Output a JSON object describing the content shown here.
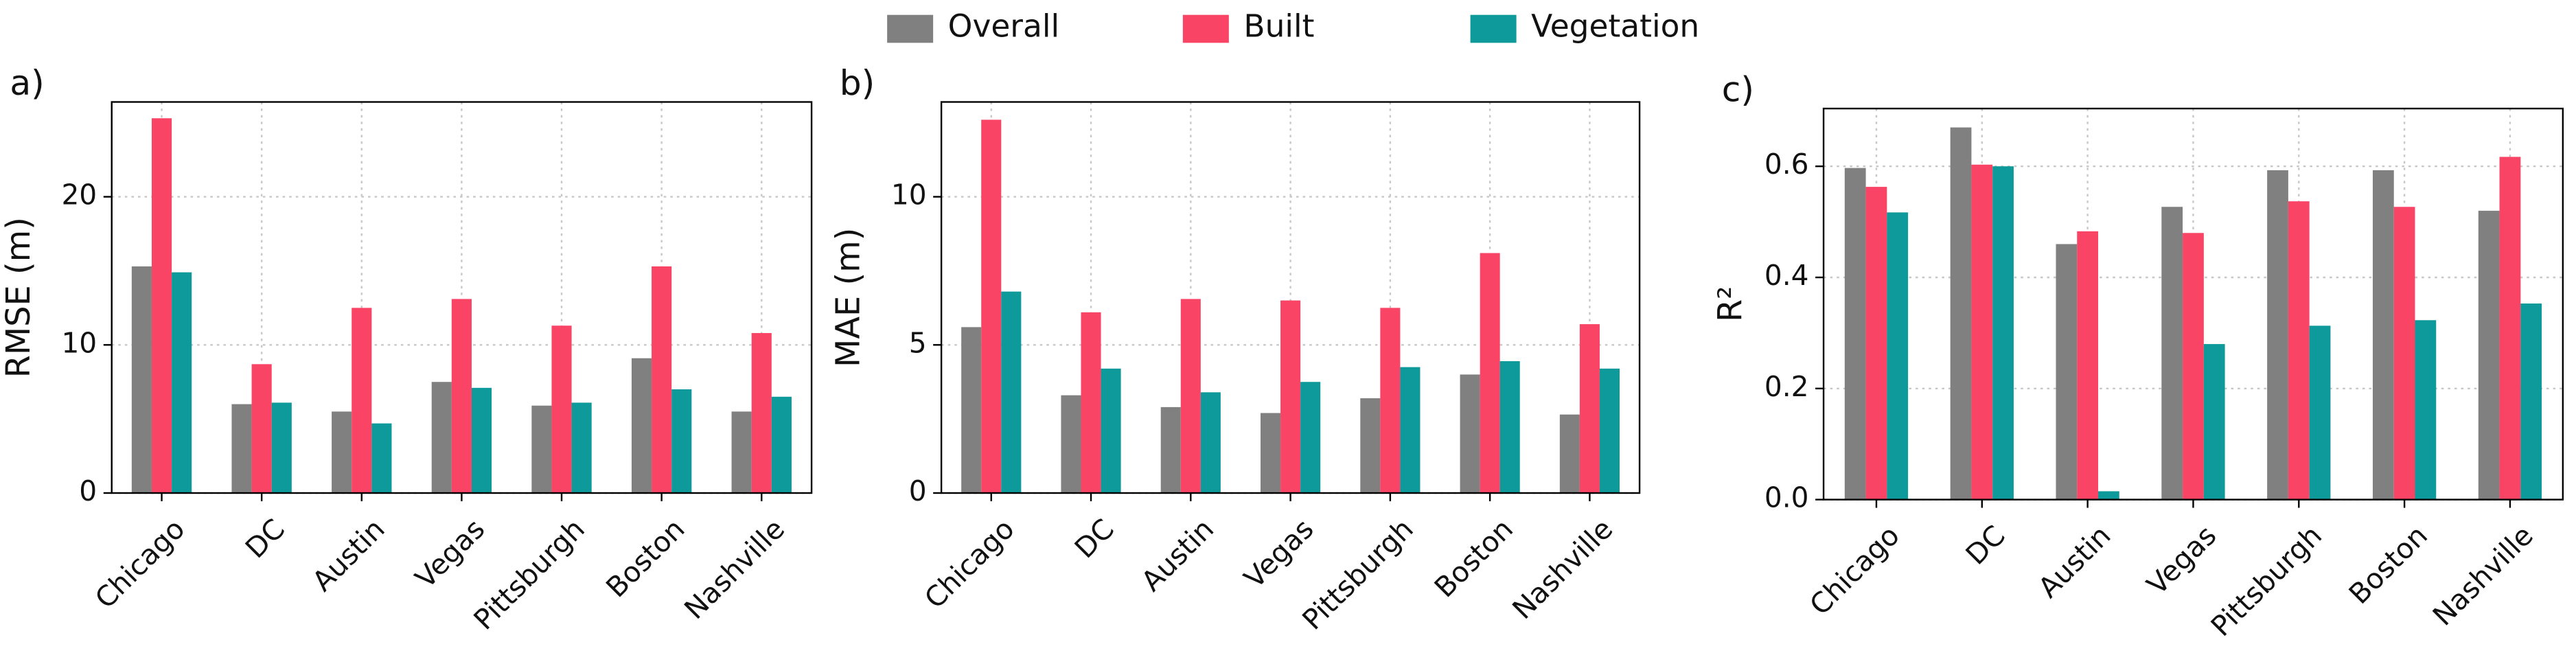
{
  "chart_data": [
    {
      "type": "bar",
      "panel": "a)",
      "ylabel": "RMSE (m)",
      "categories": [
        "Chicago",
        "DC",
        "Austin",
        "Vegas",
        "Pittsburgh",
        "Boston",
        "Nashville"
      ],
      "ylim": [
        0,
        26.4
      ],
      "yticks": [
        0,
        10,
        20
      ],
      "grid": true,
      "series": [
        {
          "name": "Overall",
          "color": "#808080",
          "values": [
            15.3,
            6.0,
            5.5,
            7.5,
            5.9,
            9.1,
            5.5
          ]
        },
        {
          "name": "Built",
          "color": "#fa4466",
          "values": [
            25.3,
            8.7,
            12.5,
            13.1,
            11.3,
            15.3,
            10.8
          ]
        },
        {
          "name": "Vegetation",
          "color": "#0e9a9a",
          "values": [
            14.9,
            6.1,
            4.7,
            7.1,
            6.1,
            7.0,
            6.5
          ]
        }
      ]
    },
    {
      "type": "bar",
      "panel": "b)",
      "ylabel": "MAE (m)",
      "categories": [
        "Chicago",
        "DC",
        "Austin",
        "Vegas",
        "Pittsburgh",
        "Boston",
        "Nashville"
      ],
      "ylim": [
        0,
        13.2
      ],
      "yticks": [
        0,
        5,
        10
      ],
      "grid": true,
      "series": [
        {
          "color": "#808080",
          "values": [
            5.6,
            3.3,
            2.9,
            2.7,
            3.2,
            4.0,
            2.65
          ]
        },
        {
          "color": "#fa4466",
          "values": [
            12.6,
            6.1,
            6.55,
            6.5,
            6.25,
            8.1,
            5.7
          ]
        },
        {
          "color": "#0e9a9a",
          "values": [
            6.8,
            4.2,
            3.4,
            3.75,
            4.25,
            4.45,
            4.2
          ]
        }
      ]
    },
    {
      "type": "bar",
      "panel": "c)",
      "ylabel": "R²",
      "categories": [
        "Chicago",
        "DC",
        "Austin",
        "Vegas",
        "Pittsburgh",
        "Boston",
        "Nashville"
      ],
      "ylim": [
        0,
        0.704
      ],
      "yticks": [
        {
          "value": 0,
          "label": "0.0"
        },
        0.2,
        0.4,
        0.6
      ],
      "grid": true,
      "series": [
        {
          "color": "#808080",
          "values": [
            0.597,
            0.67,
            0.46,
            0.527,
            0.593,
            0.593,
            0.52
          ]
        },
        {
          "color": "#fa4466",
          "values": [
            0.563,
            0.603,
            0.483,
            0.48,
            0.537,
            0.527,
            0.617
          ]
        },
        {
          "color": "#0e9a9a",
          "values": [
            0.517,
            0.6,
            0.015,
            0.28,
            0.313,
            0.323,
            0.353
          ]
        }
      ]
    }
  ]
}
